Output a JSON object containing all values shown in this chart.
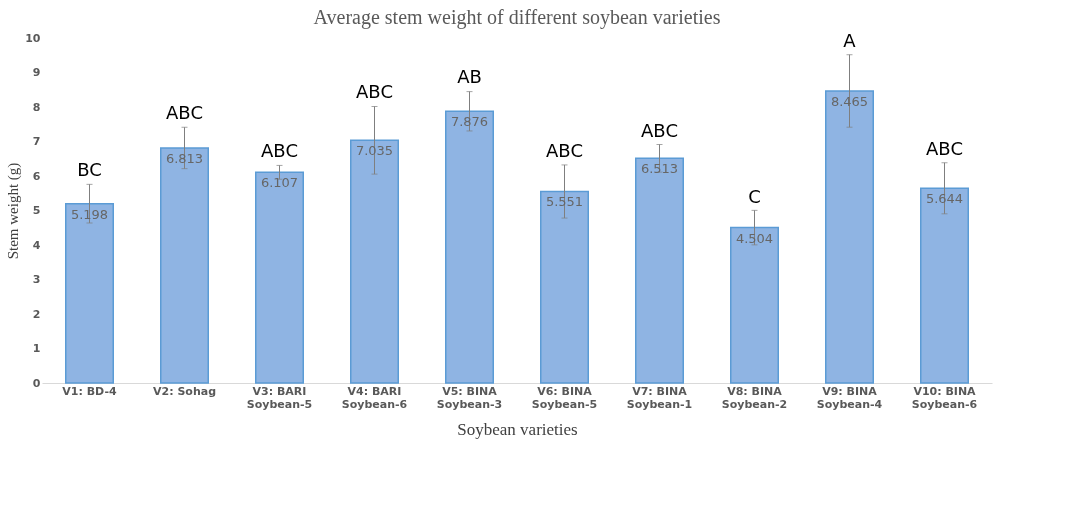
{
  "chart_data": {
    "type": "bar",
    "title": "Average stem weight of different soybean varieties",
    "xlabel": "Soybean varieties",
    "ylabel": "Stem weight (g)",
    "categories": [
      "V1: BD-4",
      "V2: Sohag",
      "V3: BARI\nSoybean-5",
      "V4: BARI\nSoybean-6",
      "V5: BINA\nSoybean-3",
      "V6: BINA\nSoybean-5",
      "V7: BINA\nSoybean-1",
      "V8: BINA\nSoybean-2",
      "V9: BINA\nSoybean-4",
      "V10: BINA\nSoybean-6"
    ],
    "values": [
      5.198,
      6.813,
      6.107,
      7.035,
      7.876,
      5.551,
      6.513,
      4.504,
      8.465,
      5.644
    ],
    "errors": [
      0.56,
      0.6,
      0.2,
      0.98,
      0.57,
      0.77,
      0.4,
      0.5,
      1.05,
      0.74
    ],
    "color": "#8fb4e3",
    "ylim": [
      0,
      10
    ],
    "yticks": [
      0,
      1,
      2,
      3,
      4,
      5,
      6,
      7,
      8,
      9,
      10
    ],
    "grid": false,
    "data_labels": true,
    "annotations": [
      {
        "text": "BC",
        "x": "V1: BD-4",
        "y": 5.76
      },
      {
        "text": "ABC",
        "x": "V2: Sohag",
        "y": 7.42
      },
      {
        "text": "ABC",
        "x": "V3: BARI\nSoybean-5",
        "y": 6.31
      },
      {
        "text": "ABC",
        "x": "V4: BARI\nSoybean-6",
        "y": 8.02
      },
      {
        "text": "AB",
        "x": "V5: BINA\nSoybean-3",
        "y": 8.45
      },
      {
        "text": "ABC",
        "x": "V6: BINA\nSoybean-5",
        "y": 6.32
      },
      {
        "text": "ABC",
        "x": "V7: BINA\nSoybean-1",
        "y": 6.91
      },
      {
        "text": "C",
        "x": "V8: BINA\nSoybean-2",
        "y": 5.0
      },
      {
        "text": "A",
        "x": "V9: BINA\nSoybean-4",
        "y": 9.52
      },
      {
        "text": "ABC",
        "x": "V10: BINA\nSoybean-6",
        "y": 6.38
      }
    ]
  }
}
